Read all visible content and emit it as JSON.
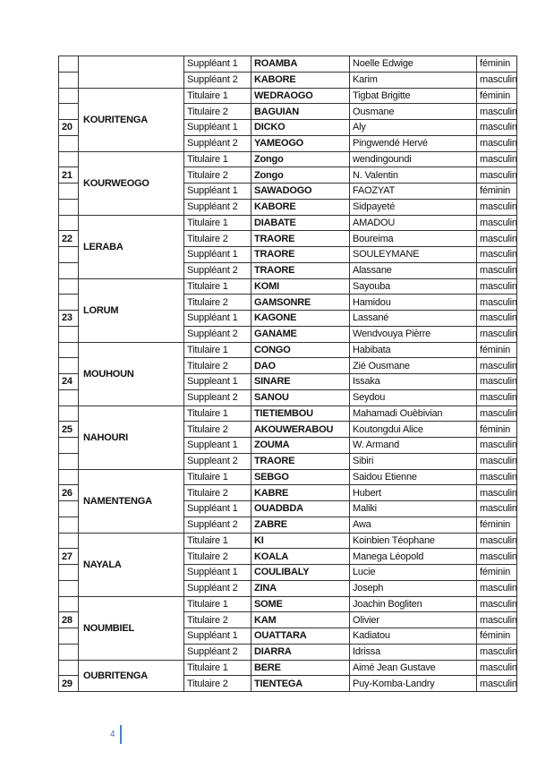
{
  "table": {
    "groups": [
      {
        "num": "",
        "name": "",
        "num_row": -1,
        "rows": [
          [
            "Suppléant 1",
            "ROAMBA",
            "Noelle Edwige",
            "féminin"
          ],
          [
            "Suppléant 2",
            "KABORE",
            "Karim",
            "masculin"
          ]
        ]
      },
      {
        "num": "20",
        "name": "KOURITENGA",
        "num_row": 2,
        "rows": [
          [
            "Titulaire 1",
            "WEDRAOGO",
            "Tigbat Brigitte",
            "féminin"
          ],
          [
            "Titulaire 2",
            "BAGUIAN",
            "Ousmane",
            "masculin"
          ],
          [
            "Suppléant 1",
            "DICKO",
            "Aly",
            "masculin"
          ],
          [
            "Suppléant 2",
            "YAMEOGO",
            "Pingwendé Hervé",
            "masculin"
          ]
        ]
      },
      {
        "num": "21",
        "name": "KOURWEOGO",
        "num_row": 1,
        "rows": [
          [
            "Titulaire 1",
            "Zongo",
            "wendingoundi",
            "masculin"
          ],
          [
            "Titulaire 2",
            "Zongo",
            "N. Valentin",
            "masculin"
          ],
          [
            "Suppléant 1",
            "SAWADOGO",
            "FAOZYAT",
            "féminin"
          ],
          [
            "Suppléant 2",
            "KABORE",
            "Sidpayeté",
            "masculin"
          ]
        ]
      },
      {
        "num": "22",
        "name": "LERABA",
        "num_row": 1,
        "rows": [
          [
            "Titulaire 1",
            "DIABATE",
            "AMADOU",
            "masculin"
          ],
          [
            "Titulaire 2",
            "TRAORE",
            "Boureima",
            "masculin"
          ],
          [
            "Suppléant 1",
            "TRAORE",
            "SOULEYMANE",
            "masculin"
          ],
          [
            "Suppléant 2",
            "TRAORE",
            "Alassane",
            "masculin"
          ]
        ]
      },
      {
        "num": "23",
        "name": "LORUM",
        "num_row": 2,
        "rows": [
          [
            "Titulaire 1",
            "KOMI",
            "Sayouba",
            "masculin"
          ],
          [
            "Titulaire 2",
            "GAMSONRE",
            "Hamidou",
            "masculin"
          ],
          [
            "Suppléant 1",
            "KAGONE",
            "Lassané",
            "masculin"
          ],
          [
            "Suppléant 2",
            "GANAME",
            "Wendvouya Pièrre",
            "masculin"
          ]
        ]
      },
      {
        "num": "24",
        "name": "MOUHOUN",
        "num_row": 2,
        "rows": [
          [
            "Titulaire 1",
            "CONGO",
            "Habibata",
            "féminin"
          ],
          [
            "Titulaire 2",
            "DAO",
            "Zié Ousmane",
            "masculin"
          ],
          [
            "Suppleant 1",
            "SINARE",
            " Issaka",
            "masculin"
          ],
          [
            "Suppleant 2",
            "SANOU",
            "Seydou",
            "masculin"
          ]
        ]
      },
      {
        "num": "25",
        "name": "NAHOURI",
        "num_row": 1,
        "rows": [
          [
            "Titulaire 1",
            "TIETIEMBOU",
            "Mahamadi Ouèbivian",
            "masculin"
          ],
          [
            "Titulaire 2",
            "AKOUWERABOU",
            "Koutongdui Alice",
            "féminin"
          ],
          [
            "Suppleant 1",
            "ZOUMA",
            "W. Armand",
            "masculin"
          ],
          [
            "Suppleant 2",
            "TRAORE",
            "Sibiri",
            "masculin"
          ]
        ]
      },
      {
        "num": "26",
        "name": "NAMENTENGA",
        "num_row": 1,
        "rows": [
          [
            "Titulaire 1",
            "SEBGO",
            "Saidou Etienne",
            "masculin"
          ],
          [
            "Titulaire 2",
            "KABRE",
            "Hubert",
            "masculin"
          ],
          [
            "Suppléant 1",
            "OUADBDA",
            "Maliki",
            "masculin"
          ],
          [
            "Suppléant 2",
            "ZABRE",
            "Awa",
            "féminin"
          ]
        ]
      },
      {
        "num": "27",
        "name": "NAYALA",
        "num_row": 1,
        "rows": [
          [
            "Titulaire 1",
            "KI",
            "Koinbien Téophane",
            "masculin"
          ],
          [
            "Titulaire 2",
            "KOALA",
            "Manega Léopold",
            "masculin"
          ],
          [
            "Suppléant 1",
            "COULIBALY",
            "Lucie",
            "féminin"
          ],
          [
            "Suppléant 2",
            "ZINA",
            "Joseph",
            "masculin"
          ]
        ]
      },
      {
        "num": "28",
        "name": "NOUMBIEL",
        "num_row": 1,
        "rows": [
          [
            "Titulaire 1",
            "SOME",
            "Joachin Bogliten",
            "masculin"
          ],
          [
            "Titulaire 2",
            "KAM",
            "Olivier",
            "masculin"
          ],
          [
            "Suppléant 1",
            "OUATTARA",
            "Kadiatou",
            "féminin"
          ],
          [
            "Suppléant 2",
            "DIARRA",
            "Idrissa",
            "masculin"
          ]
        ]
      },
      {
        "num": "29",
        "name": "OUBRITENGA",
        "num_row": 1,
        "rows": [
          [
            "Titulaire 1",
            "BERE",
            "Aimé Jean Gustave",
            "masculin"
          ],
          [
            "Titulaire 2",
            "TIENTEGA",
            "Puy-Komba-Landry",
            "masculin"
          ]
        ]
      }
    ]
  },
  "footer": {
    "page_number": "4",
    "accent_color": "#4a7fc0"
  }
}
